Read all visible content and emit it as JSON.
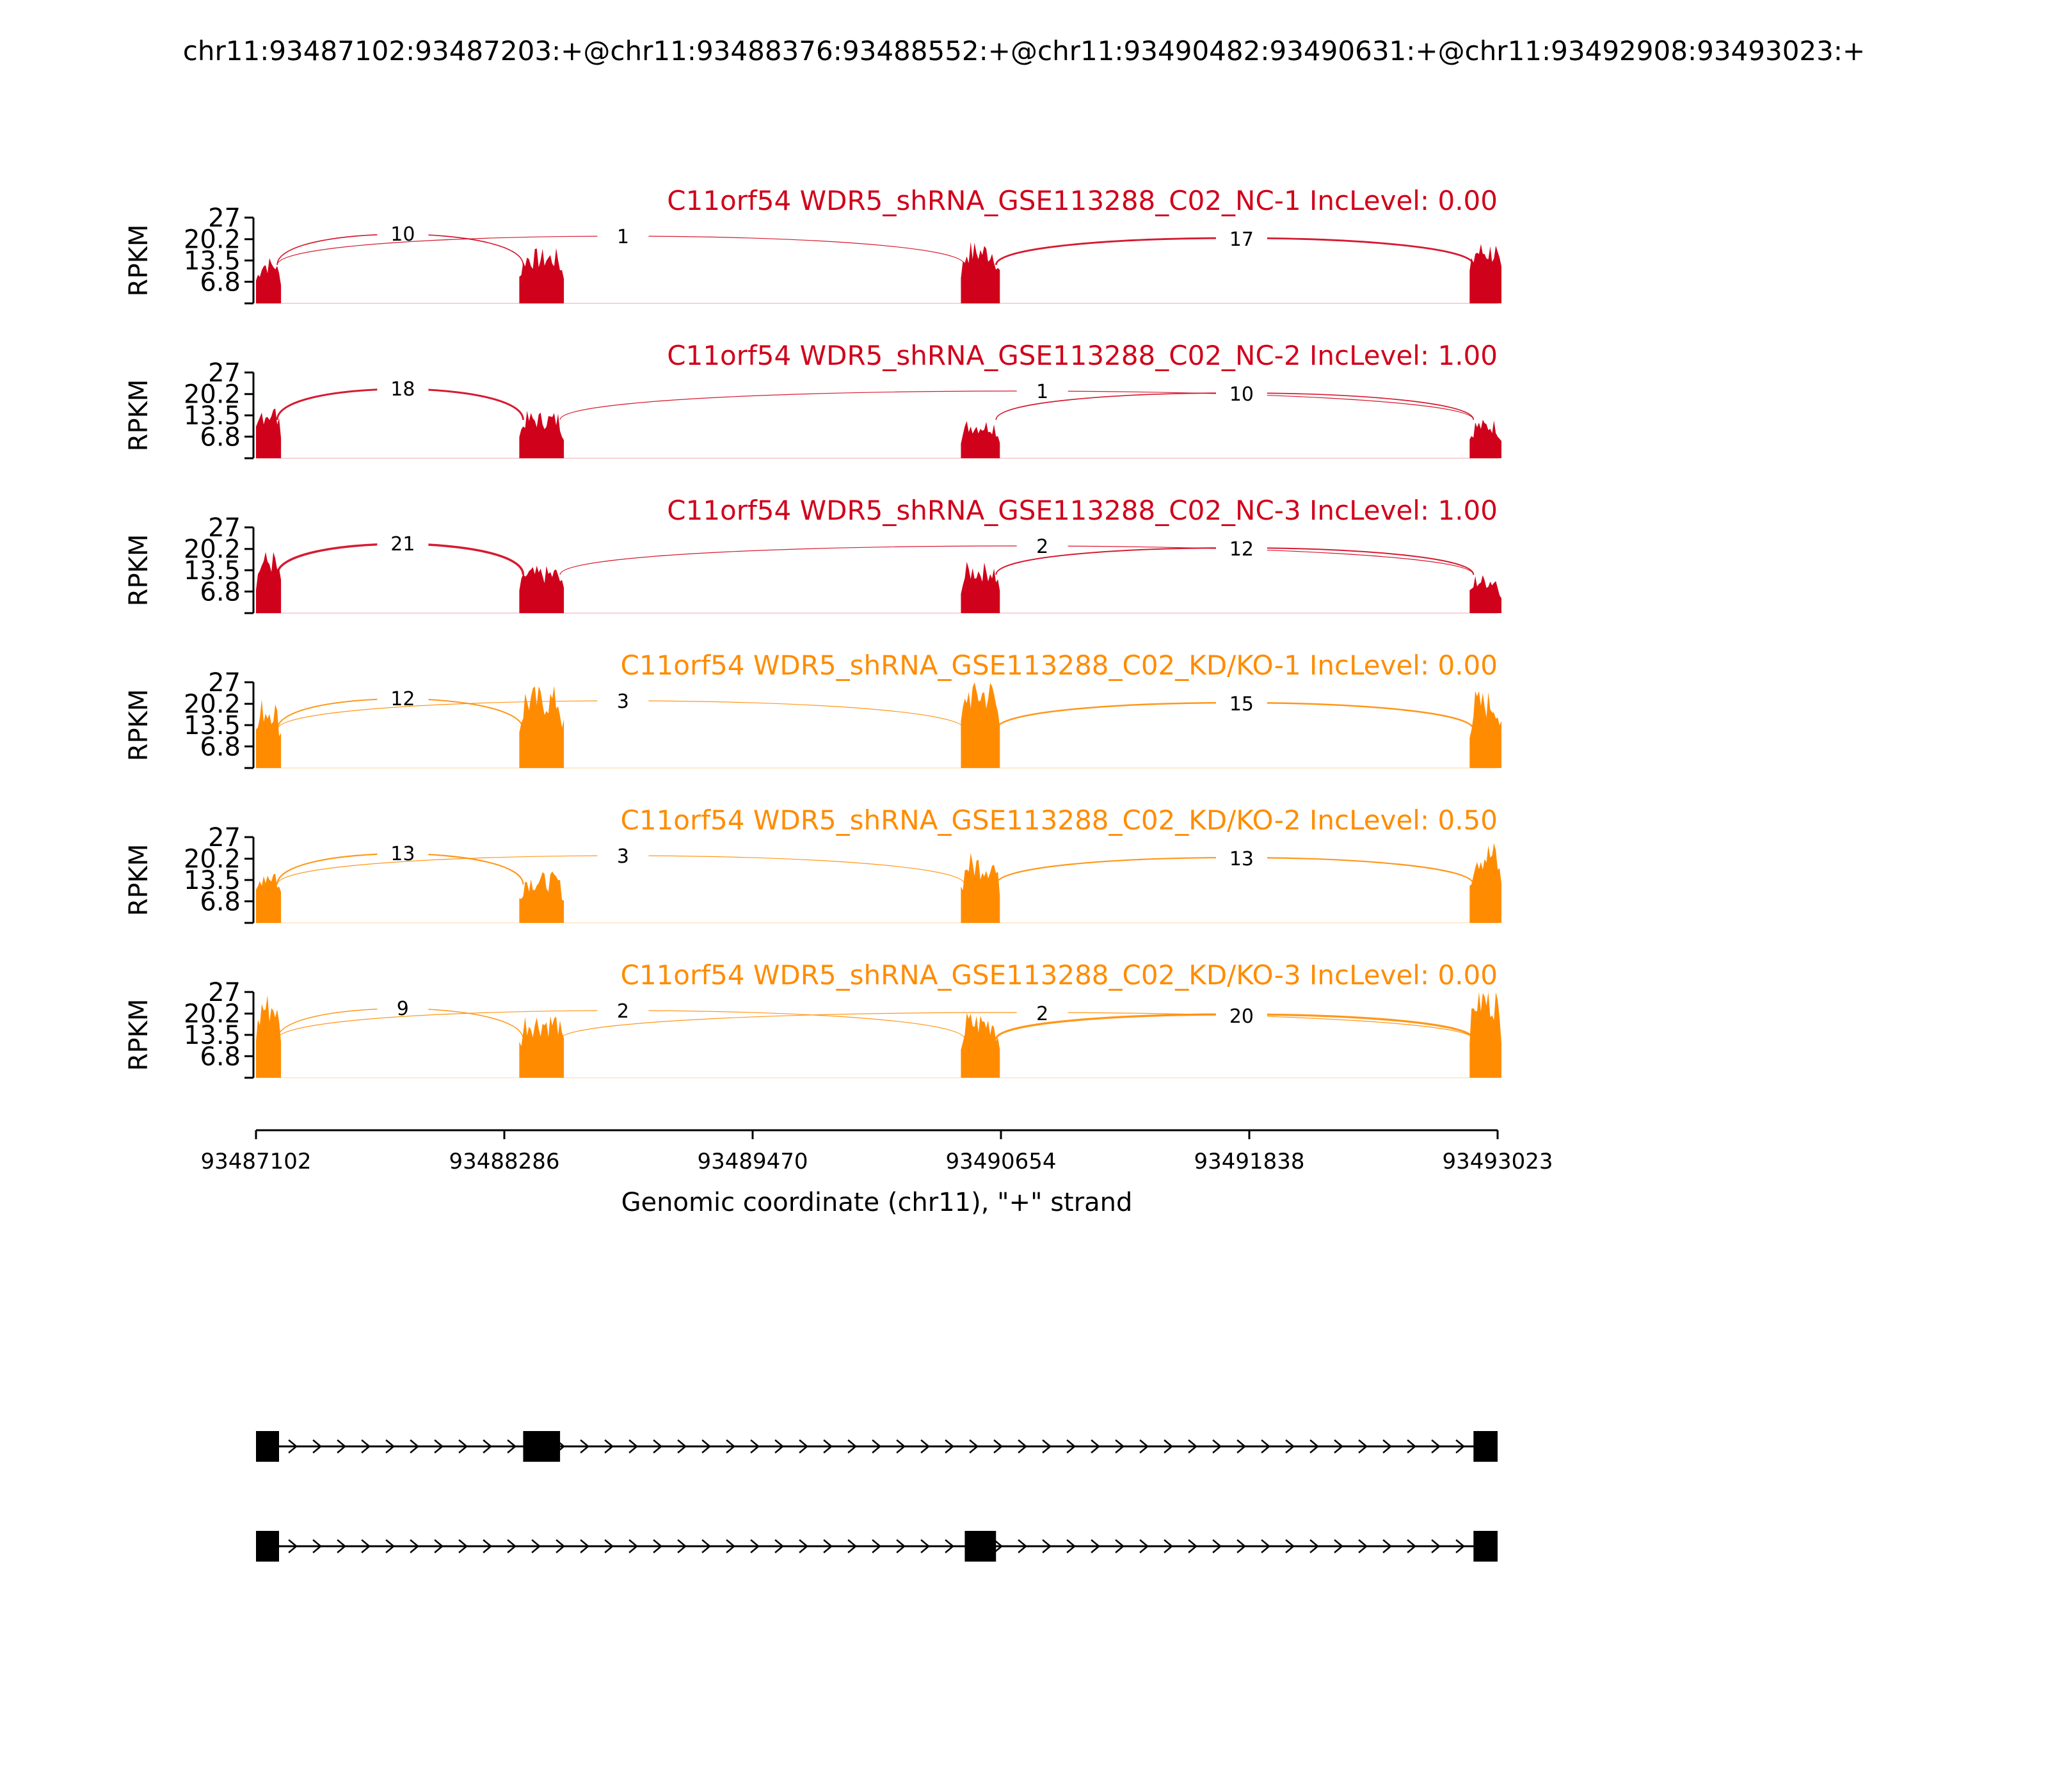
{
  "chart_data": {
    "type": "sashimi",
    "title": "chr11:93487102:93487203:+@chr11:93488376:93488552:+@chr11:93490482:93490631:+@chr11:93492908:93493023:+",
    "ylabel": "RPKM",
    "xlabel": "Genomic coordinate (chr11), \"+\" strand",
    "ylim": [
      0,
      27
    ],
    "yticks": [
      "6.8",
      "13.5",
      "20.2",
      "27"
    ],
    "xlim": [
      93487102,
      93493023
    ],
    "xticks": [
      "93487102",
      "93488286",
      "93489470",
      "93490654",
      "93491838",
      "93493023"
    ],
    "exons": [
      {
        "start": 93487102,
        "end": 93487203
      },
      {
        "start": 93488376,
        "end": 93488552
      },
      {
        "start": 93490482,
        "end": 93490631
      },
      {
        "start": 93492908,
        "end": 93493023
      }
    ],
    "tracks": [
      {
        "label": "C11orf54 WDR5_shRNA_GSE113288_C02_NC-1 IncLevel: 0.00",
        "color": "#d0021b",
        "exon_levels": [
          12,
          14,
          16,
          16
        ],
        "junctions": [
          {
            "from": 93487203,
            "to": 93488376,
            "count": "10",
            "side": "up",
            "label_x": 93487802
          },
          {
            "from": 93487203,
            "to": 93490482,
            "count": "1",
            "side": "up",
            "label_x": 93488852
          },
          {
            "from": 93490631,
            "to": 93492908,
            "count": "17",
            "side": "up",
            "label_x": 93491802
          }
        ]
      },
      {
        "label": "C11orf54 WDR5_shRNA_GSE113288_C02_NC-2 IncLevel: 1.00",
        "color": "#d0021b",
        "exon_levels": [
          14,
          12,
          10,
          10
        ],
        "junctions": [
          {
            "from": 93487203,
            "to": 93488376,
            "count": "18",
            "side": "up",
            "label_x": 93487802
          },
          {
            "from": 93488552,
            "to": 93492908,
            "count": "1",
            "side": "up",
            "label_x": 93490852
          },
          {
            "from": 93490631,
            "to": 93492908,
            "count": "10",
            "side": "up",
            "label_x": 93491802
          }
        ]
      },
      {
        "label": "C11orf54 WDR5_shRNA_GSE113288_C02_NC-3 IncLevel: 1.00",
        "color": "#d0021b",
        "exon_levels": [
          16,
          12,
          13,
          10
        ],
        "junctions": [
          {
            "from": 93487203,
            "to": 93488376,
            "count": "21",
            "side": "up",
            "label_x": 93487802
          },
          {
            "from": 93488552,
            "to": 93492908,
            "count": "2",
            "side": "up",
            "label_x": 93490852
          },
          {
            "from": 93490631,
            "to": 93492908,
            "count": "12",
            "side": "up",
            "label_x": 93491802
          }
        ]
      },
      {
        "label": "C11orf54 WDR5_shRNA_GSE113288_C02_KD/KO-1 IncLevel: 0.00",
        "color": "#ff8c00",
        "exon_levels": [
          18,
          21,
          23,
          20
        ],
        "junctions": [
          {
            "from": 93487203,
            "to": 93488376,
            "count": "12",
            "side": "up",
            "label_x": 93487802
          },
          {
            "from": 93487203,
            "to": 93490482,
            "count": "3",
            "side": "up",
            "label_x": 93488852
          },
          {
            "from": 93490631,
            "to": 93492908,
            "count": "15",
            "side": "up",
            "label_x": 93491802
          }
        ]
      },
      {
        "label": "C11orf54 WDR5_shRNA_GSE113288_C02_KD/KO-2 IncLevel: 0.50",
        "color": "#ff8c00",
        "exon_levels": [
          15,
          13,
          18,
          21
        ],
        "junctions": [
          {
            "from": 93487203,
            "to": 93488376,
            "count": "13",
            "side": "up",
            "label_x": 93487802
          },
          {
            "from": 93487203,
            "to": 93490482,
            "count": "3",
            "side": "up",
            "label_x": 93488852
          },
          {
            "from": 93490631,
            "to": 93492908,
            "count": "13",
            "side": "up",
            "label_x": 93491802
          }
        ]
      },
      {
        "label": "C11orf54 WDR5_shRNA_GSE113288_C02_KD/KO-3 IncLevel: 0.00",
        "color": "#ff8c00",
        "exon_levels": [
          22,
          17,
          17,
          24
        ],
        "junctions": [
          {
            "from": 93487203,
            "to": 93488376,
            "count": "9",
            "side": "up",
            "label_x": 93487802
          },
          {
            "from": 93487203,
            "to": 93490482,
            "count": "2",
            "side": "up",
            "label_x": 93488852
          },
          {
            "from": 93488552,
            "to": 93492908,
            "count": "2",
            "side": "up",
            "label_x": 93490852
          },
          {
            "from": 93490631,
            "to": 93492908,
            "count": "20",
            "side": "up",
            "label_x": 93491802
          }
        ]
      }
    ],
    "isoforms": [
      {
        "exons": [
          0,
          1,
          3
        ]
      },
      {
        "exons": [
          0,
          2,
          3
        ]
      }
    ]
  }
}
